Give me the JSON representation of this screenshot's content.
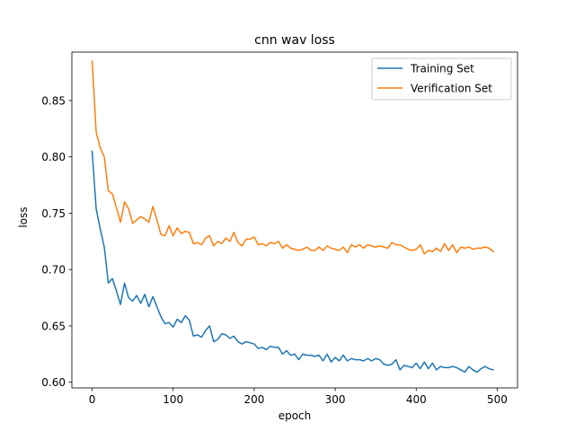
{
  "chart_data": {
    "type": "line",
    "title": "cnn wav loss",
    "xlabel": "epoch",
    "ylabel": "loss",
    "xlim": [
      -25,
      525
    ],
    "ylim": [
      0.595,
      0.893
    ],
    "xticks": [
      0,
      100,
      200,
      300,
      400,
      500
    ],
    "xtick_labels": [
      "0",
      "100",
      "200",
      "300",
      "400",
      "500"
    ],
    "yticks": [
      0.6,
      0.65,
      0.7,
      0.75,
      0.8,
      0.85
    ],
    "ytick_labels": [
      "0.60",
      "0.65",
      "0.70",
      "0.75",
      "0.80",
      "0.85"
    ],
    "grid": false,
    "legend_position": "top-right",
    "x": [
      0,
      5,
      10,
      15,
      20,
      25,
      30,
      35,
      40,
      45,
      50,
      55,
      60,
      65,
      70,
      75,
      80,
      85,
      90,
      95,
      100,
      105,
      110,
      115,
      120,
      125,
      130,
      135,
      140,
      145,
      150,
      155,
      160,
      165,
      170,
      175,
      180,
      185,
      190,
      195,
      200,
      205,
      210,
      215,
      220,
      225,
      230,
      235,
      240,
      245,
      250,
      255,
      260,
      265,
      270,
      275,
      280,
      285,
      290,
      295,
      300,
      305,
      310,
      315,
      320,
      325,
      330,
      335,
      340,
      345,
      350,
      355,
      360,
      365,
      370,
      375,
      380,
      385,
      390,
      395,
      400,
      405,
      410,
      415,
      420,
      425,
      430,
      435,
      440,
      445,
      450,
      455,
      460,
      465,
      470,
      475,
      480,
      485,
      490,
      495
    ],
    "series": [
      {
        "name": "Training Set",
        "color": "#1f77b4",
        "values": [
          0.805,
          0.754,
          0.736,
          0.72,
          0.688,
          0.692,
          0.681,
          0.669,
          0.688,
          0.675,
          0.672,
          0.677,
          0.67,
          0.678,
          0.667,
          0.676,
          0.667,
          0.658,
          0.652,
          0.653,
          0.649,
          0.656,
          0.653,
          0.659,
          0.655,
          0.641,
          0.642,
          0.64,
          0.646,
          0.65,
          0.636,
          0.638,
          0.643,
          0.642,
          0.639,
          0.641,
          0.636,
          0.634,
          0.636,
          0.635,
          0.634,
          0.63,
          0.631,
          0.629,
          0.632,
          0.631,
          0.631,
          0.625,
          0.628,
          0.624,
          0.625,
          0.62,
          0.625,
          0.624,
          0.624,
          0.623,
          0.624,
          0.619,
          0.625,
          0.618,
          0.622,
          0.619,
          0.624,
          0.619,
          0.621,
          0.62,
          0.62,
          0.619,
          0.621,
          0.619,
          0.621,
          0.62,
          0.616,
          0.615,
          0.616,
          0.62,
          0.611,
          0.615,
          0.614,
          0.613,
          0.617,
          0.612,
          0.618,
          0.612,
          0.617,
          0.611,
          0.614,
          0.613,
          0.613,
          0.614,
          0.613,
          0.611,
          0.609,
          0.614,
          0.611,
          0.609,
          0.612,
          0.614,
          0.612,
          0.611
        ]
      },
      {
        "name": "Verification Set",
        "color": "#ff7f0e",
        "values": [
          0.885,
          0.822,
          0.808,
          0.8,
          0.77,
          0.767,
          0.755,
          0.742,
          0.76,
          0.754,
          0.741,
          0.744,
          0.747,
          0.745,
          0.742,
          0.756,
          0.744,
          0.731,
          0.73,
          0.739,
          0.73,
          0.737,
          0.732,
          0.734,
          0.733,
          0.723,
          0.724,
          0.722,
          0.728,
          0.73,
          0.721,
          0.725,
          0.723,
          0.728,
          0.725,
          0.733,
          0.724,
          0.721,
          0.727,
          0.727,
          0.729,
          0.722,
          0.723,
          0.721,
          0.724,
          0.723,
          0.725,
          0.719,
          0.722,
          0.719,
          0.718,
          0.717,
          0.718,
          0.72,
          0.717,
          0.717,
          0.72,
          0.717,
          0.721,
          0.719,
          0.718,
          0.717,
          0.72,
          0.715,
          0.722,
          0.72,
          0.722,
          0.719,
          0.722,
          0.721,
          0.72,
          0.721,
          0.72,
          0.719,
          0.724,
          0.722,
          0.722,
          0.72,
          0.718,
          0.717,
          0.718,
          0.722,
          0.714,
          0.717,
          0.716,
          0.719,
          0.716,
          0.723,
          0.717,
          0.722,
          0.715,
          0.72,
          0.719,
          0.72,
          0.718,
          0.719,
          0.719,
          0.72,
          0.719,
          0.716
        ]
      }
    ]
  }
}
